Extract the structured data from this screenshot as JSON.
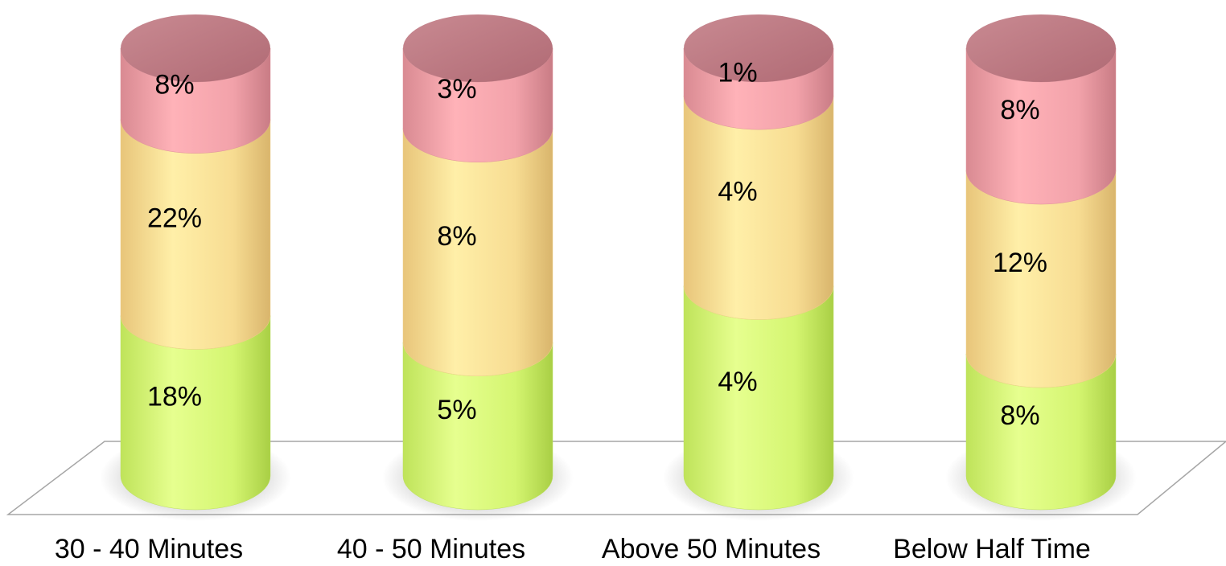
{
  "chart_data": {
    "type": "bar",
    "stacked": true,
    "style": "3d-cylinder",
    "categories": [
      "30 - 40 Minutes",
      "40 - 50 Minutes",
      "Above 50 Minutes",
      "Below Half Time"
    ],
    "series": [
      {
        "values": [
          18,
          5,
          4,
          8
        ],
        "labels": [
          "18%",
          "5%",
          "4%",
          "8%"
        ],
        "color": "#d4f57a"
      },
      {
        "values": [
          22,
          8,
          4,
          12
        ],
        "labels": [
          "22%",
          "8%",
          "4%",
          "12%"
        ],
        "color": "#f7d98f"
      },
      {
        "values": [
          8,
          3,
          1,
          8
        ],
        "labels": [
          "8%",
          "3%",
          "1%",
          "8%"
        ],
        "color": "#f0a0a8"
      }
    ],
    "title": "",
    "xlabel": "",
    "ylabel": "",
    "legend": "none",
    "grid": false
  }
}
